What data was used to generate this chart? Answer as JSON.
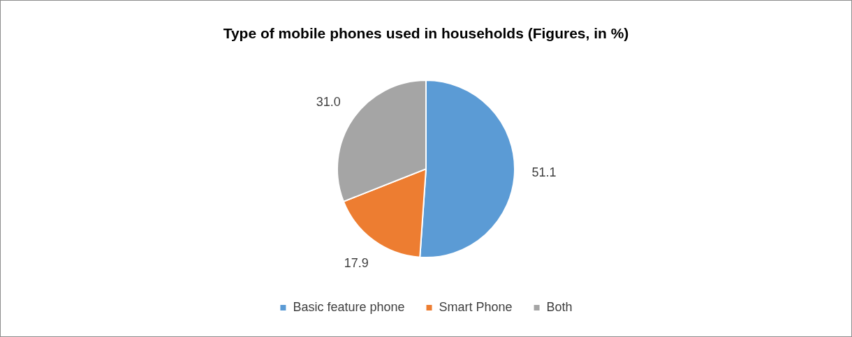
{
  "chart_data": {
    "type": "pie",
    "title": "Type of mobile phones used in households (Figures, in %)",
    "categories": [
      "Basic feature phone",
      "Smart Phone",
      "Both"
    ],
    "values": [
      51.1,
      17.9,
      31.0
    ],
    "colors": [
      "#5b9bd5",
      "#ed7d31",
      "#a5a5a5"
    ],
    "value_labels": [
      "51.1",
      "17.9",
      "31.0"
    ],
    "legend": "bottom"
  }
}
